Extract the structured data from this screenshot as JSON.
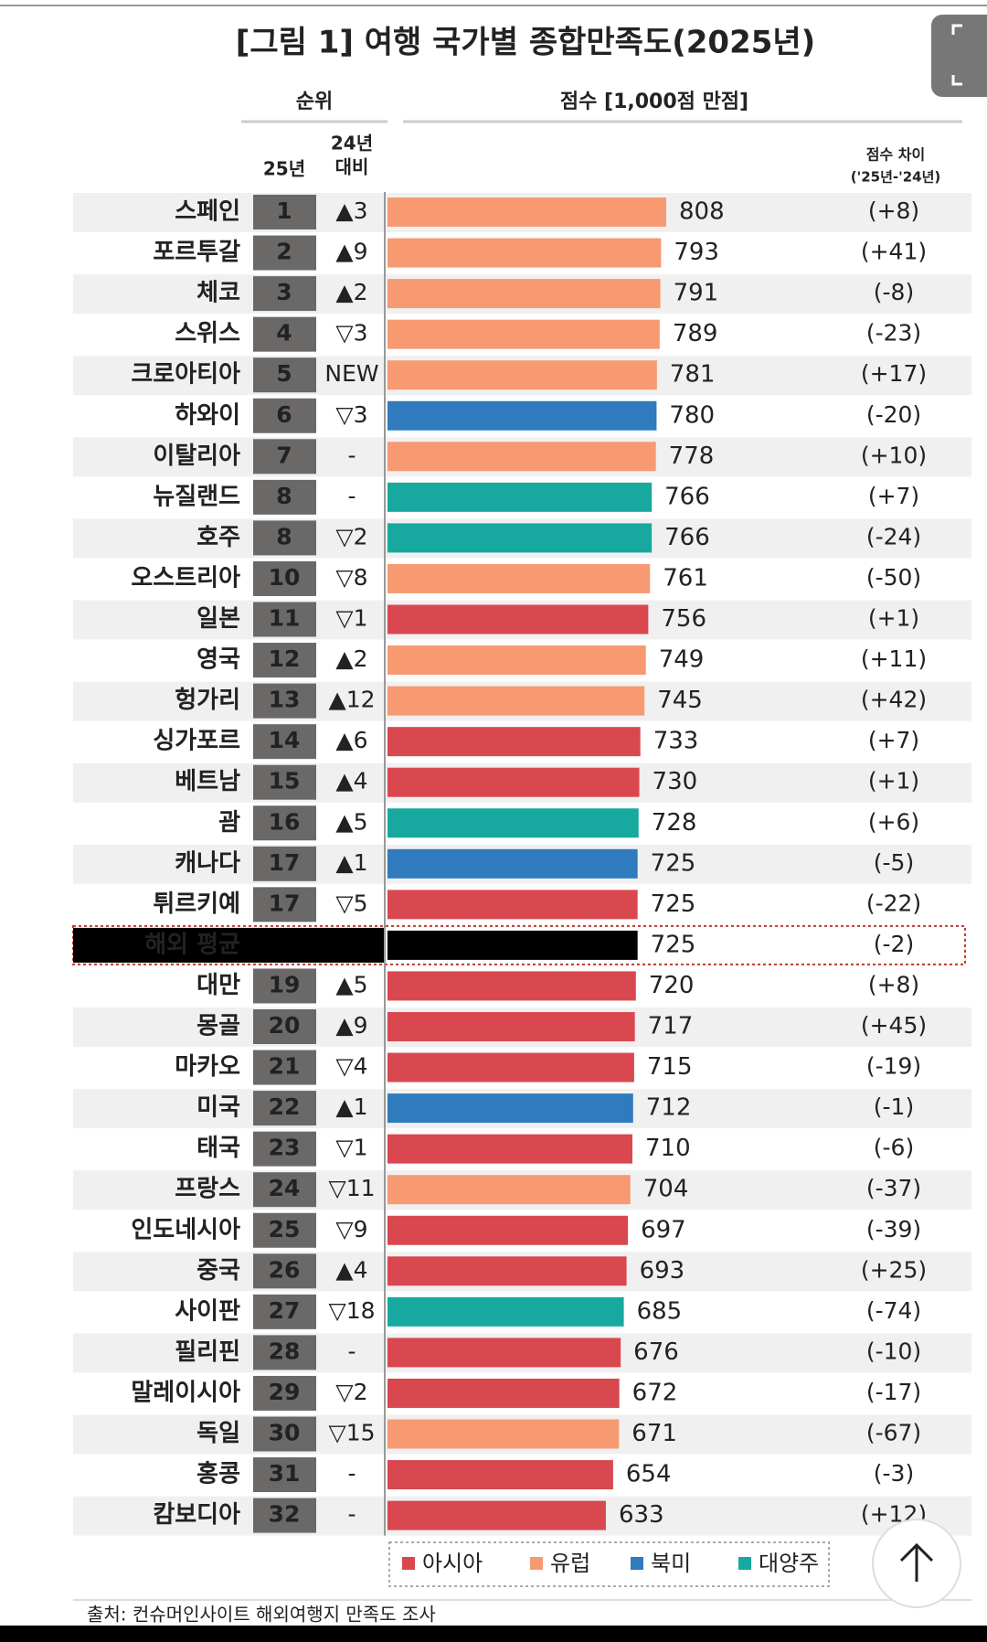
{
  "chart_data": {
    "type": "bar",
    "orientation": "horizontal",
    "title": "[그림 1] 여행 국가별 종합만족도(2025년)",
    "rank_header": "순위",
    "score_header": "점수 [1,000점 만점]",
    "rank_col_header": "25년",
    "change_col_header": [
      "24년",
      "대비"
    ],
    "diff_header": [
      "점수 차이",
      "('25년-'24년)"
    ],
    "categories": [
      "스페인",
      "포르투갈",
      "체코",
      "스위스",
      "크로아티아",
      "하와이",
      "이탈리아",
      "뉴질랜드",
      "호주",
      "오스트리아",
      "일본",
      "영국",
      "헝가리",
      "싱가포르",
      "베트남",
      "괌",
      "캐나다",
      "튀르키예",
      "해외 평균",
      "대만",
      "몽골",
      "마카오",
      "미국",
      "태국",
      "프랑스",
      "인도네시아",
      "중국",
      "사이판",
      "필리핀",
      "말레이시아",
      "독일",
      "홍콩",
      "캄보디아"
    ],
    "ranks": [
      1,
      2,
      3,
      4,
      5,
      6,
      7,
      8,
      8,
      10,
      11,
      12,
      13,
      14,
      15,
      16,
      17,
      17,
      null,
      19,
      20,
      21,
      22,
      23,
      24,
      25,
      26,
      27,
      28,
      29,
      30,
      31,
      32
    ],
    "changes": [
      "▲3",
      "▲9",
      "▲2",
      "▽3",
      "NEW",
      "▽3",
      "-",
      "-",
      "▽2",
      "▽8",
      "▽1",
      "▲2",
      "▲12",
      "▲6",
      "▲4",
      "▲5",
      "▲1",
      "▽5",
      null,
      "▲5",
      "▲9",
      "▽4",
      "▲1",
      "▽1",
      "▽11",
      "▽9",
      "▲4",
      "▽18",
      "-",
      "▽2",
      "▽15",
      "-",
      "-"
    ],
    "values": [
      808,
      793,
      791,
      789,
      781,
      780,
      778,
      766,
      766,
      761,
      756,
      749,
      745,
      733,
      730,
      728,
      725,
      725,
      725,
      720,
      717,
      715,
      712,
      710,
      704,
      697,
      693,
      685,
      676,
      672,
      671,
      654,
      633
    ],
    "diffs": [
      "(+8)",
      "(+41)",
      "(-8)",
      "(-23)",
      "(+17)",
      "(-20)",
      "(+10)",
      "(+7)",
      "(-24)",
      "(-50)",
      "(+1)",
      "(+11)",
      "(+42)",
      "(+7)",
      "(+1)",
      "(+6)",
      "(-5)",
      "(-22)",
      "(-2)",
      "(+8)",
      "(+45)",
      "(-19)",
      "(-1)",
      "(-6)",
      "(-37)",
      "(-39)",
      "(+25)",
      "(-74)",
      "(-10)",
      "(-17)",
      "(-67)",
      "(-3)",
      "(+12)"
    ],
    "colors": [
      "#f79a72",
      "#f79a72",
      "#f79a72",
      "#f79a72",
      "#f79a72",
      "#2f7bbd",
      "#f79a72",
      "#17a99f",
      "#17a99f",
      "#f79a72",
      "#d9484f",
      "#f79a72",
      "#f79a72",
      "#d9484f",
      "#d9484f",
      "#17a99f",
      "#2f7bbd",
      "#d9484f",
      "#000000",
      "#d9484f",
      "#d9484f",
      "#d9484f",
      "#2f7bbd",
      "#d9484f",
      "#f79a72",
      "#d9484f",
      "#d9484f",
      "#17a99f",
      "#d9484f",
      "#d9484f",
      "#f79a72",
      "#d9484f",
      "#d9484f"
    ],
    "legend": [
      {
        "name": "아시아",
        "color": "#d9484f"
      },
      {
        "name": "유럽",
        "color": "#f79a72"
      },
      {
        "name": "북미",
        "color": "#2f7bbd"
      },
      {
        "name": "대양주",
        "color": "#17a99f"
      }
    ],
    "source": "출처: 컨슈머인사이트 해외여행지 만족도 조사"
  }
}
